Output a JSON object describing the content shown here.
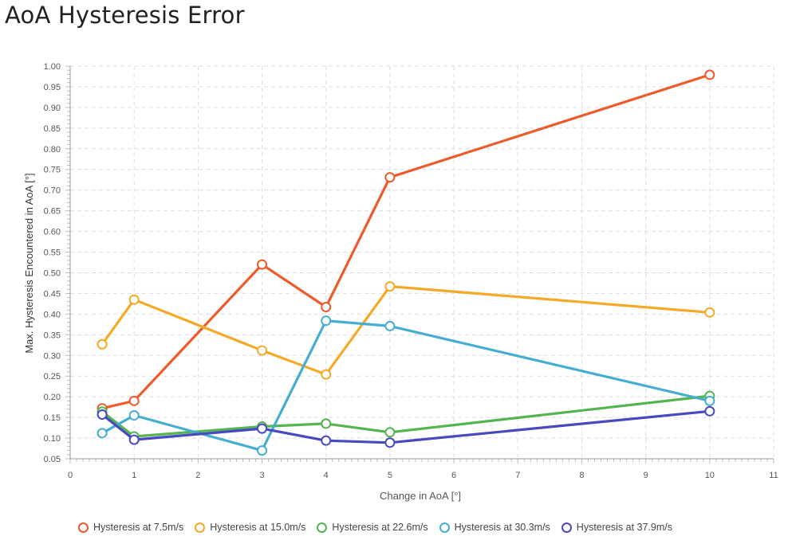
{
  "chart_data": {
    "type": "line",
    "title": "AoA Hysteresis Error",
    "xlabel": "Change in AoA [°]",
    "ylabel": "Max. Hysteresis Encountered in AoA [°]",
    "xlim": [
      0,
      11
    ],
    "ylim": [
      0.05,
      1.0
    ],
    "x_ticks": [
      0,
      1,
      2,
      3,
      4,
      5,
      6,
      7,
      8,
      9,
      10,
      11
    ],
    "y_ticks": [
      0.05,
      0.1,
      0.15,
      0.2,
      0.25,
      0.3,
      0.35,
      0.4,
      0.45,
      0.5,
      0.55,
      0.6,
      0.65,
      0.7,
      0.75,
      0.8,
      0.85,
      0.9,
      0.95,
      1.0
    ],
    "grid": true,
    "legend_position": "bottom",
    "x": [
      0.5,
      1,
      3,
      4,
      5,
      10
    ],
    "series": [
      {
        "name": "Hysteresis at 7.5m/s",
        "color": "#ee5a2a",
        "values": [
          0.172,
          0.19,
          0.52,
          0.417,
          0.731,
          0.979
        ]
      },
      {
        "name": "Hysteresis at 15.0m/s",
        "color": "#f5aa27",
        "values": [
          0.327,
          0.435,
          0.312,
          0.254,
          0.467,
          0.404
        ]
      },
      {
        "name": "Hysteresis at 22.6m/s",
        "color": "#55b452",
        "values": [
          0.164,
          0.104,
          0.128,
          0.135,
          0.114,
          0.202
        ]
      },
      {
        "name": "Hysteresis at 30.3m/s",
        "color": "#45aed0",
        "values": [
          0.112,
          0.155,
          0.07,
          0.384,
          0.371,
          0.19
        ]
      },
      {
        "name": "Hysteresis at 37.9m/s",
        "color": "#4848c0",
        "values": [
          0.157,
          0.096,
          0.123,
          0.094,
          0.089,
          0.165
        ]
      }
    ]
  }
}
